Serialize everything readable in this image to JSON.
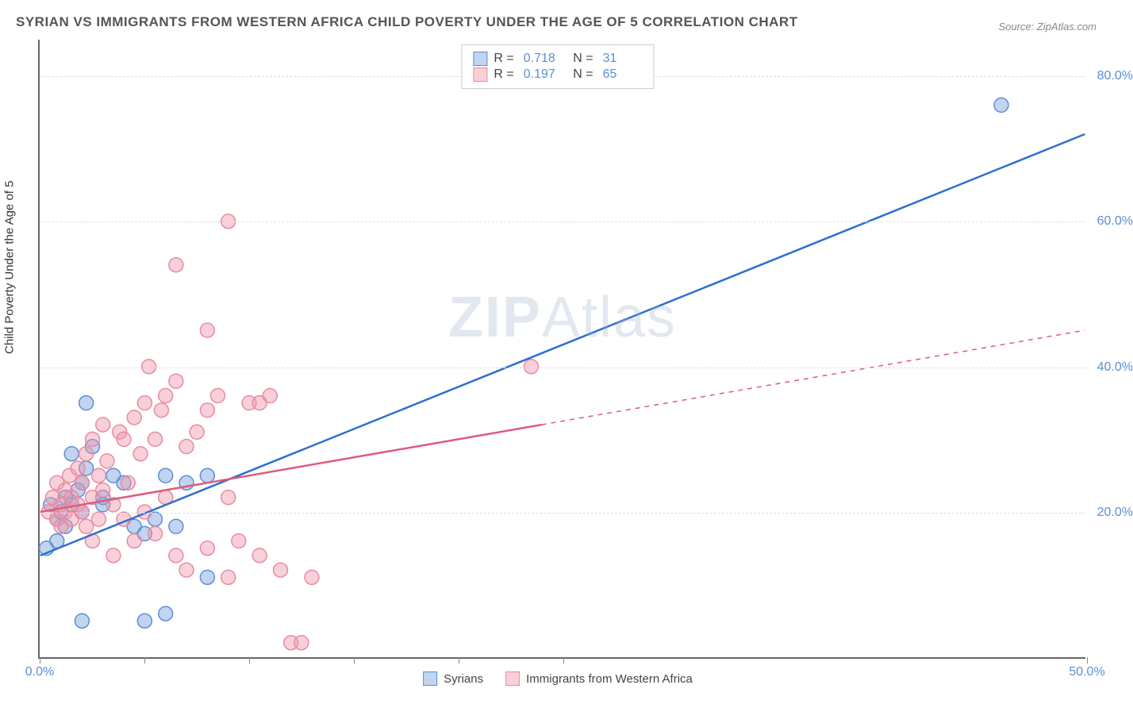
{
  "title": "SYRIAN VS IMMIGRANTS FROM WESTERN AFRICA CHILD POVERTY UNDER THE AGE OF 5 CORRELATION CHART",
  "source": "Source: ZipAtlas.com",
  "ylabel": "Child Poverty Under the Age of 5",
  "watermark_a": "ZIP",
  "watermark_b": "Atlas",
  "chart": {
    "type": "scatter-with-regression",
    "xlim": [
      0,
      50
    ],
    "ylim": [
      0,
      85
    ],
    "x_ticks": [
      0,
      5,
      10,
      15,
      20,
      25,
      50
    ],
    "x_tick_labels": {
      "0": "0.0%",
      "50": "50.0%"
    },
    "y_ticks": [
      20,
      40,
      60,
      80
    ],
    "y_tick_labels": {
      "20": "20.0%",
      "40": "40.0%",
      "60": "60.0%",
      "80": "80.0%"
    },
    "background_color": "#ffffff",
    "grid_color": "#dddddd",
    "axis_color": "#666666",
    "series": [
      {
        "name": "Syrians",
        "label": "Syrians",
        "marker_color_fill": "rgba(120,160,220,0.45)",
        "marker_color_stroke": "#5b8fd6",
        "marker_radius": 9,
        "line_color": "#2f6fd0",
        "line_width": 2.5,
        "R": 0.718,
        "N": 31,
        "regression": {
          "x1": 0,
          "y1": 14,
          "x2": 50,
          "y2": 72,
          "dash": false,
          "solid_until": 50
        },
        "points": [
          [
            0.3,
            15
          ],
          [
            0.5,
            21
          ],
          [
            0.8,
            19
          ],
          [
            0.8,
            16
          ],
          [
            1.0,
            20
          ],
          [
            1.2,
            22
          ],
          [
            1.2,
            18
          ],
          [
            1.5,
            21
          ],
          [
            1.8,
            23
          ],
          [
            1.5,
            28
          ],
          [
            2.0,
            20
          ],
          [
            2.0,
            24
          ],
          [
            2.2,
            26
          ],
          [
            2.5,
            29
          ],
          [
            2.2,
            35
          ],
          [
            3.0,
            22
          ],
          [
            3.5,
            25
          ],
          [
            3.0,
            21
          ],
          [
            4.0,
            24
          ],
          [
            4.5,
            18
          ],
          [
            5.0,
            17
          ],
          [
            5.5,
            19
          ],
          [
            6.0,
            25
          ],
          [
            6.5,
            18
          ],
          [
            7.0,
            24
          ],
          [
            8.0,
            25
          ],
          [
            2.0,
            5
          ],
          [
            5.0,
            5
          ],
          [
            6.0,
            6
          ],
          [
            8.0,
            11
          ],
          [
            46,
            76
          ]
        ]
      },
      {
        "name": "Immigrants from Western Africa",
        "label": "Immigrants from Western Africa",
        "marker_color_fill": "rgba(240,150,170,0.45)",
        "marker_color_stroke": "#e88ba0",
        "marker_radius": 9,
        "line_color": "#e05a7a",
        "line_width": 2.5,
        "R": 0.197,
        "N": 65,
        "regression": {
          "x1": 0,
          "y1": 20,
          "x2": 50,
          "y2": 45,
          "dash": true,
          "solid_until": 24
        },
        "points": [
          [
            0.4,
            20
          ],
          [
            0.6,
            22
          ],
          [
            0.8,
            19
          ],
          [
            0.8,
            24
          ],
          [
            1.0,
            21
          ],
          [
            1.0,
            18
          ],
          [
            1.2,
            23
          ],
          [
            1.2,
            20
          ],
          [
            1.4,
            25
          ],
          [
            1.5,
            19
          ],
          [
            1.5,
            22
          ],
          [
            1.8,
            26
          ],
          [
            1.8,
            21
          ],
          [
            2.0,
            24
          ],
          [
            2.0,
            20
          ],
          [
            2.2,
            28
          ],
          [
            2.2,
            18
          ],
          [
            2.5,
            30
          ],
          [
            2.5,
            22
          ],
          [
            2.5,
            16
          ],
          [
            2.8,
            25
          ],
          [
            2.8,
            19
          ],
          [
            3.0,
            32
          ],
          [
            3.0,
            23
          ],
          [
            3.2,
            27
          ],
          [
            3.5,
            21
          ],
          [
            3.5,
            14
          ],
          [
            3.8,
            31
          ],
          [
            4.0,
            19
          ],
          [
            4.0,
            30
          ],
          [
            4.2,
            24
          ],
          [
            4.5,
            33
          ],
          [
            4.5,
            16
          ],
          [
            4.8,
            28
          ],
          [
            5.0,
            35
          ],
          [
            5.0,
            20
          ],
          [
            5.2,
            40
          ],
          [
            5.5,
            30
          ],
          [
            5.5,
            17
          ],
          [
            5.8,
            34
          ],
          [
            6.0,
            36
          ],
          [
            6.0,
            22
          ],
          [
            6.5,
            38
          ],
          [
            6.5,
            14
          ],
          [
            7.0,
            29
          ],
          [
            7.0,
            12
          ],
          [
            7.5,
            31
          ],
          [
            8.0,
            34
          ],
          [
            8.0,
            15
          ],
          [
            8.5,
            36
          ],
          [
            9.0,
            22
          ],
          [
            9.0,
            11
          ],
          [
            9.5,
            16
          ],
          [
            10.0,
            35
          ],
          [
            10.5,
            14
          ],
          [
            11.0,
            36
          ],
          [
            11.5,
            12
          ],
          [
            6.5,
            54
          ],
          [
            9.0,
            60
          ],
          [
            10.5,
            35
          ],
          [
            12.0,
            2
          ],
          [
            12.5,
            2
          ],
          [
            13.0,
            11
          ],
          [
            8.0,
            45
          ],
          [
            23.5,
            40
          ]
        ]
      }
    ]
  },
  "legend_top": {
    "rows": [
      {
        "swatch_fill": "rgba(120,160,220,0.45)",
        "swatch_stroke": "#5b8fd6",
        "R": "0.718",
        "N": "31"
      },
      {
        "swatch_fill": "rgba(240,150,170,0.45)",
        "swatch_stroke": "#e88ba0",
        "R": "0.197",
        "N": "65"
      }
    ]
  },
  "legend_bottom": {
    "items": [
      {
        "swatch_fill": "rgba(120,160,220,0.45)",
        "swatch_stroke": "#5b8fd6",
        "label": "Syrians"
      },
      {
        "swatch_fill": "rgba(240,150,170,0.45)",
        "swatch_stroke": "#e88ba0",
        "label": "Immigrants from Western Africa"
      }
    ]
  }
}
